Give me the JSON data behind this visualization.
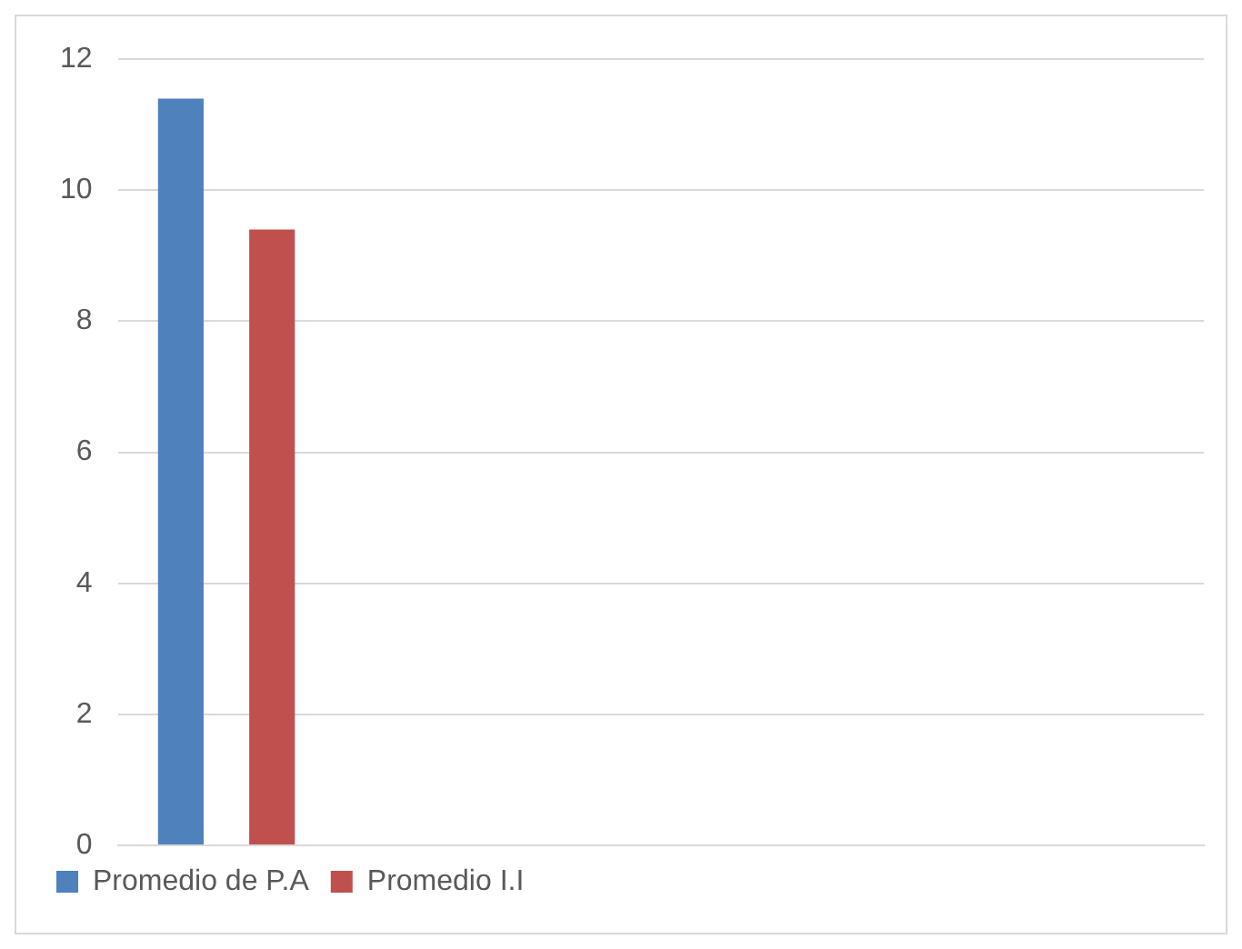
{
  "chart_data": {
    "type": "bar",
    "categories": [
      null,
      null,
      null,
      null,
      null
    ],
    "series": [
      {
        "name": "Promedio de P.A",
        "color": "#4f81bd",
        "values": [
          11.4,
          null,
          null,
          null,
          null
        ]
      },
      {
        "name": "Promedio I.I",
        "color": "#c0504d",
        "values": [
          9.4,
          null,
          null,
          null,
          null
        ]
      }
    ],
    "ylim": [
      0,
      12
    ],
    "yticks": [
      0,
      2,
      4,
      6,
      8,
      10,
      12
    ],
    "grid": "y",
    "legend": "bottom"
  }
}
